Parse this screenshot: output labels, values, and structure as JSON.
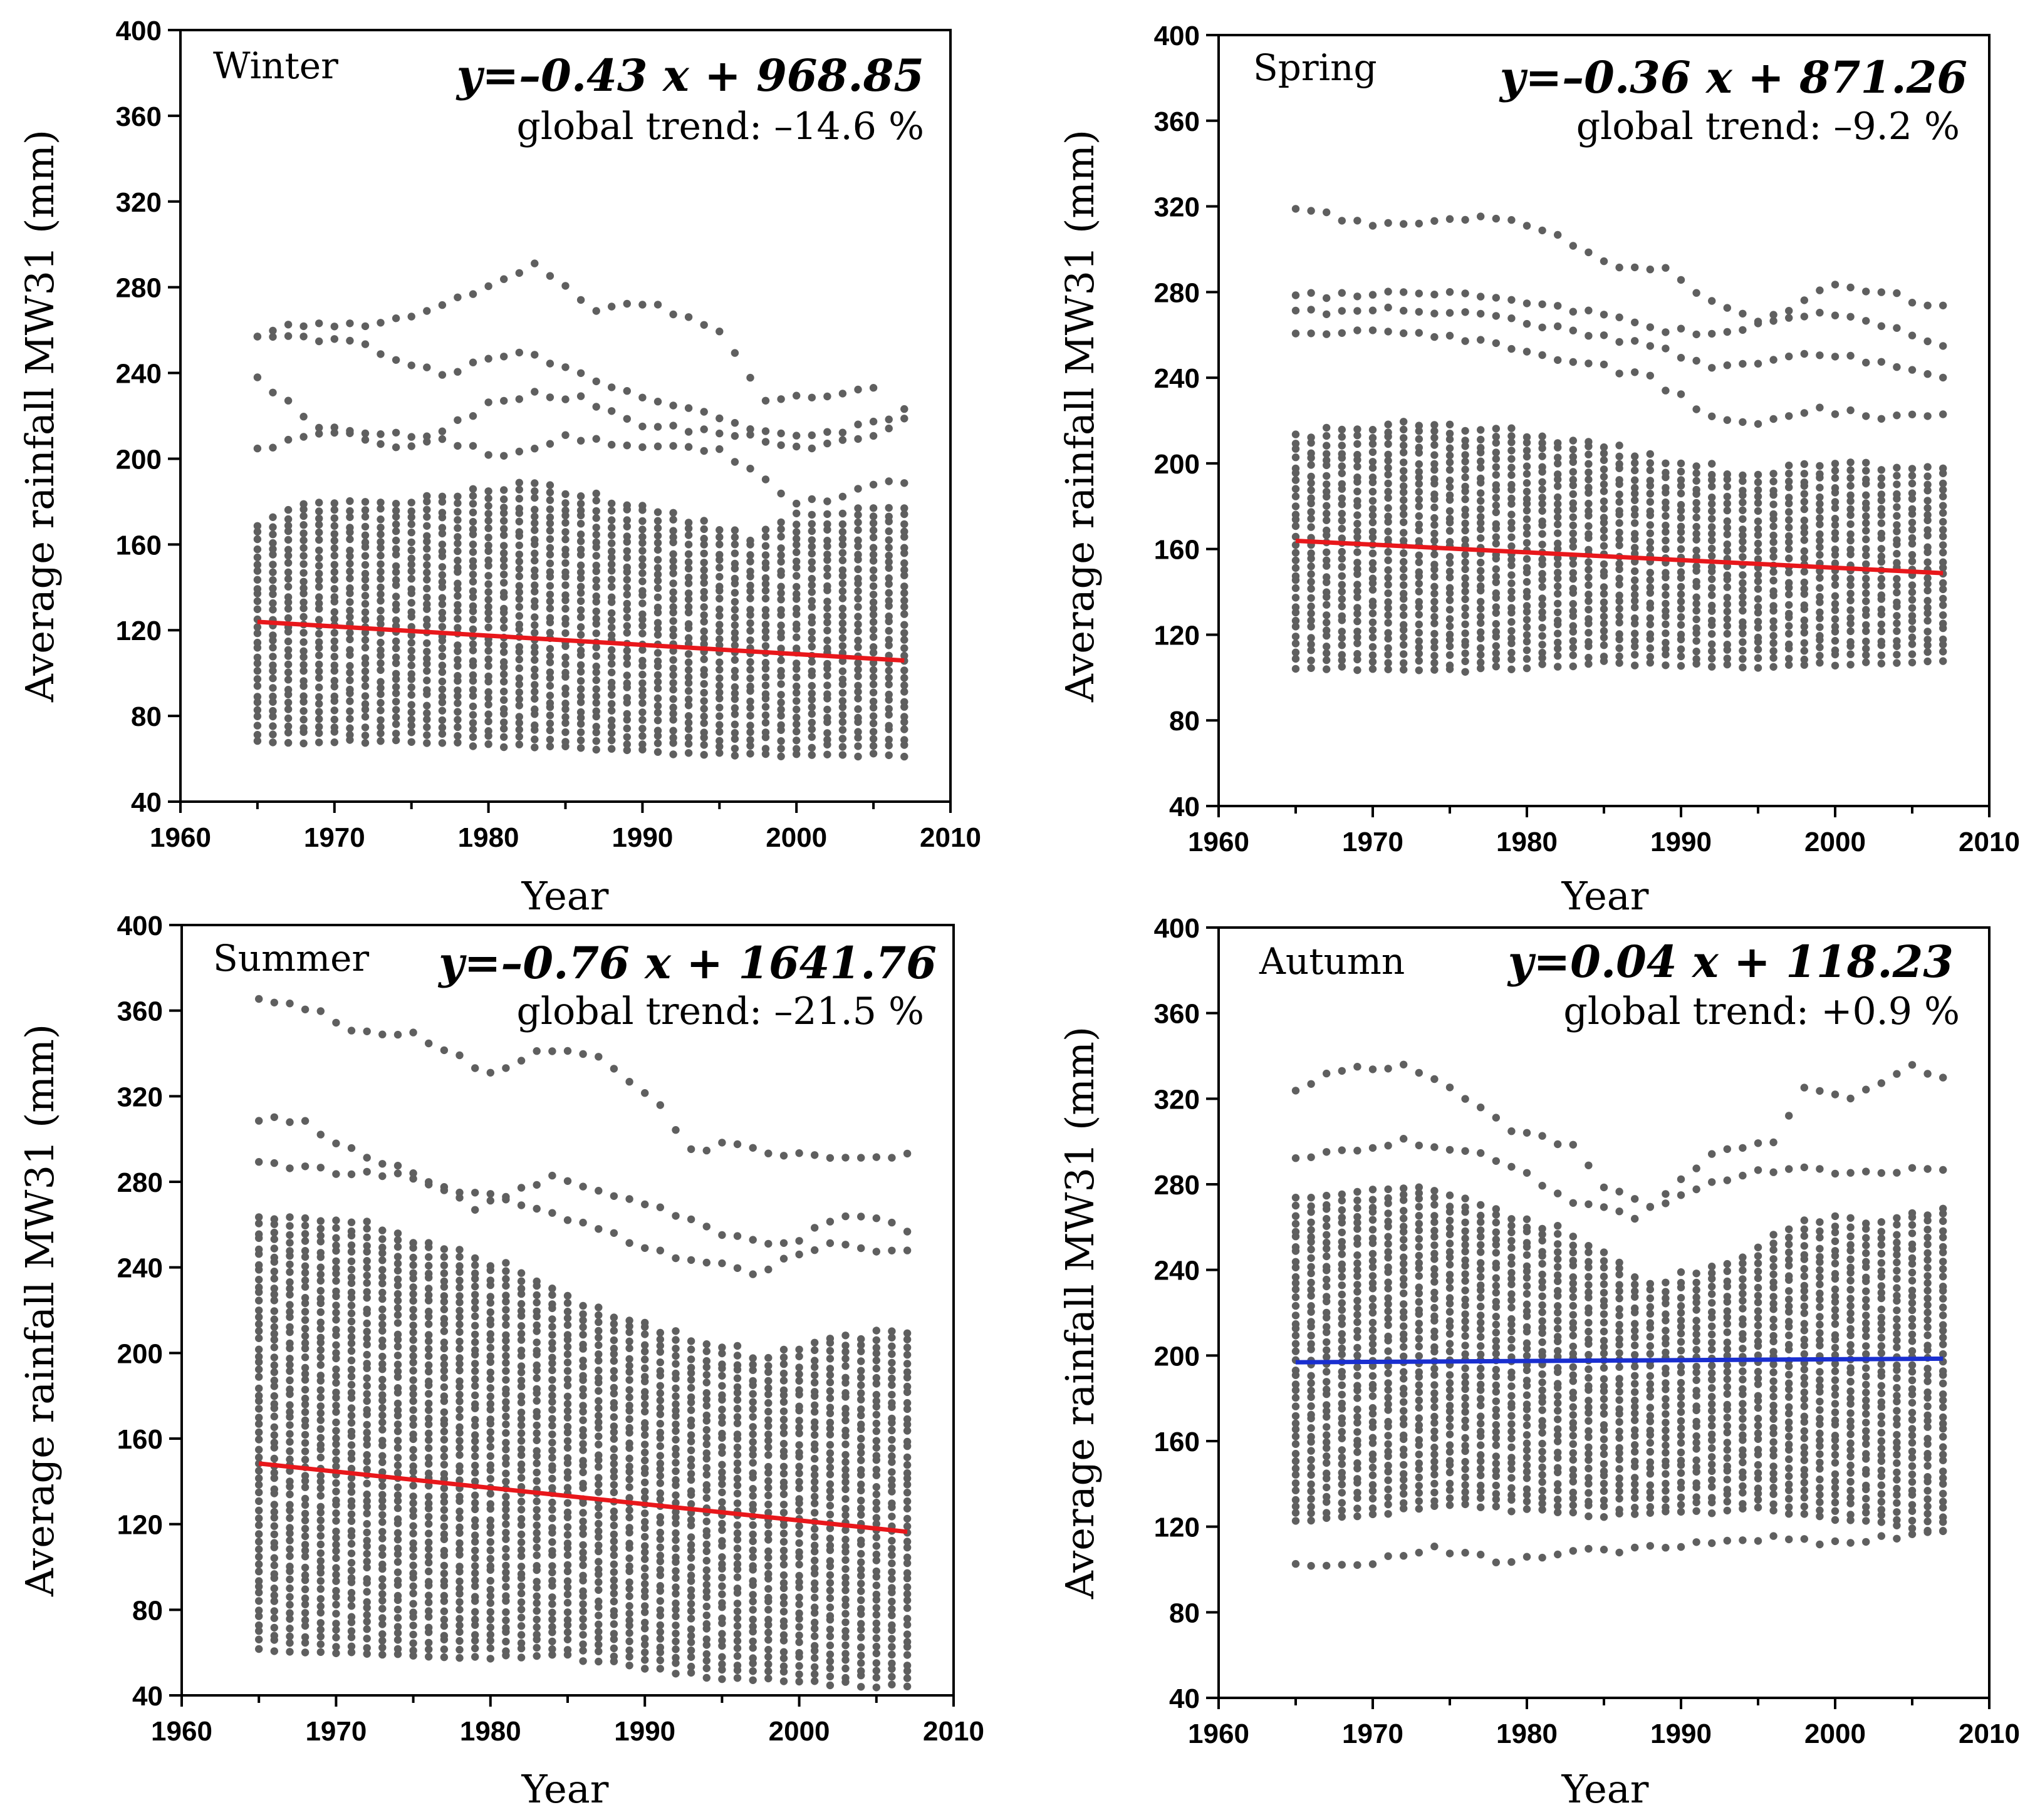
{
  "figure": {
    "colors": {
      "dots": "#5f5f5f",
      "axis": "#000000",
      "trend_red": "#e8171b",
      "trend_blue": "#1a2fd0"
    }
  },
  "chart_data": [
    {
      "type": "scatter",
      "panel": "winter",
      "season": "Winter",
      "equation": "y=–0.43 x + 968.85",
      "global_trend": "global trend: –14.6 %",
      "xlabel": "Year",
      "ylabel": "Average rainfall MW31 (mm)",
      "xlim": [
        1960,
        2010
      ],
      "ylim": [
        40,
        400
      ],
      "xticks": [
        "1960",
        "1970",
        "1980",
        "1990",
        "2000",
        "2010"
      ],
      "yticks": [
        "40",
        "80",
        "120",
        "160",
        "200",
        "240",
        "280",
        "320",
        "360",
        "400"
      ],
      "trend": {
        "slope": -0.43,
        "intercept": 968.85,
        "x_start": 1965,
        "x_end": 2007,
        "color": "#e8171b"
      },
      "years": [
        1965,
        2007
      ],
      "band_low": [
        [
          1965,
          68
        ],
        [
          1975,
          68
        ],
        [
          1985,
          65
        ],
        [
          1995,
          62
        ],
        [
          2007,
          62
        ]
      ],
      "band_high": [
        [
          1965,
          172
        ],
        [
          1968,
          180
        ],
        [
          1975,
          182
        ],
        [
          1983,
          190
        ],
        [
          1990,
          180
        ],
        [
          1997,
          165
        ],
        [
          2000,
          175
        ],
        [
          2007,
          180
        ]
      ],
      "outlier_tracks": [
        [
          [
            1965,
            205
          ],
          [
            1968,
            210
          ],
          [
            1973,
            212
          ],
          [
            1977,
            210
          ],
          [
            1981,
            200
          ],
          [
            1985,
            210
          ],
          [
            1990,
            205
          ],
          [
            1995,
            205
          ],
          [
            1997,
            195
          ],
          [
            2000,
            178
          ],
          [
            2004,
            185
          ],
          [
            2007,
            190
          ]
        ],
        [
          [
            1965,
            237
          ],
          [
            1969,
            215
          ],
          [
            1975,
            205
          ],
          [
            1980,
            225
          ],
          [
            1983,
            230
          ],
          [
            1986,
            228
          ],
          [
            1990,
            215
          ],
          [
            1995,
            213
          ],
          [
            2000,
            205
          ],
          [
            2004,
            208
          ],
          [
            2007,
            218
          ]
        ],
        [
          [
            1965,
            258
          ],
          [
            1971,
            255
          ],
          [
            1977,
            240
          ],
          [
            1982,
            250
          ],
          [
            1986,
            240
          ],
          [
            1990,
            228
          ],
          [
            1994,
            222
          ],
          [
            1998,
            212
          ],
          [
            2003,
            212
          ],
          [
            2007,
            222
          ]
        ],
        [
          [
            1965,
            258
          ],
          [
            1967,
            262
          ],
          [
            1973,
            262
          ],
          [
            1977,
            272
          ],
          [
            1983,
            290
          ],
          [
            1987,
            270
          ],
          [
            1991,
            272
          ],
          [
            1995,
            258
          ],
          [
            1998,
            228
          ],
          [
            2002,
            228
          ],
          [
            2005,
            233
          ]
        ]
      ]
    },
    {
      "type": "scatter",
      "panel": "spring",
      "season": "Spring",
      "equation": "y=–0.36 x + 871.26",
      "global_trend": "global trend: –9.2 %",
      "xlabel": "Year",
      "ylabel": "Average rainfall MW31 (mm)",
      "xlim": [
        1960,
        2010
      ],
      "ylim": [
        40,
        400
      ],
      "xticks": [
        "1960",
        "1970",
        "1980",
        "1990",
        "2000",
        "2010"
      ],
      "yticks": [
        "40",
        "80",
        "120",
        "160",
        "200",
        "240",
        "280",
        "320",
        "360",
        "400"
      ],
      "trend": {
        "slope": -0.36,
        "intercept": 871.26,
        "x_start": 1965,
        "x_end": 2007,
        "color": "#e8171b"
      },
      "years": [
        1965,
        2007
      ],
      "band_low": [
        [
          1965,
          105
        ],
        [
          1975,
          103
        ],
        [
          1985,
          107
        ],
        [
          1995,
          105
        ],
        [
          2007,
          108
        ]
      ],
      "band_high": [
        [
          1965,
          215
        ],
        [
          1971,
          220
        ],
        [
          1978,
          218
        ],
        [
          1985,
          210
        ],
        [
          1990,
          200
        ],
        [
          1995,
          198
        ],
        [
          2000,
          202
        ],
        [
          2007,
          198
        ]
      ],
      "outlier_tracks": [
        [
          [
            1965,
            260
          ],
          [
            1970,
            262
          ],
          [
            1977,
            258
          ],
          [
            1983,
            248
          ],
          [
            1988,
            240
          ],
          [
            1992,
            222
          ],
          [
            1995,
            218
          ],
          [
            1999,
            225
          ],
          [
            2003,
            222
          ],
          [
            2007,
            222
          ]
        ],
        [
          [
            1965,
            270
          ],
          [
            1970,
            272
          ],
          [
            1977,
            270
          ],
          [
            1983,
            262
          ],
          [
            1988,
            255
          ],
          [
            1992,
            245
          ],
          [
            1997,
            250
          ],
          [
            2001,
            250
          ],
          [
            2007,
            240
          ]
        ],
        [
          [
            1965,
            278
          ],
          [
            1971,
            280
          ],
          [
            1978,
            278
          ],
          [
            1984,
            270
          ],
          [
            1989,
            262
          ],
          [
            1993,
            260
          ],
          [
            1998,
            270
          ],
          [
            2002,
            268
          ],
          [
            2007,
            255
          ]
        ],
        [
          [
            1965,
            320
          ],
          [
            1969,
            312
          ],
          [
            1974,
            313
          ],
          [
            1978,
            315
          ],
          [
            1983,
            303
          ],
          [
            1986,
            290
          ],
          [
            1989,
            292
          ],
          [
            1991,
            280
          ],
          [
            1995,
            265
          ],
          [
            2000,
            283
          ],
          [
            2004,
            278
          ],
          [
            2007,
            273
          ]
        ]
      ]
    },
    {
      "type": "scatter",
      "panel": "summer",
      "season": "Summer",
      "equation": "y=–0.76 x + 1641.76",
      "global_trend": "global trend: –21.5 %",
      "xlabel": "Year",
      "ylabel": "Average rainfall MW31 (mm)",
      "xlim": [
        1960,
        2010
      ],
      "ylim": [
        40,
        400
      ],
      "xticks": [
        "1960",
        "1970",
        "1980",
        "1990",
        "2000",
        "2010"
      ],
      "yticks": [
        "40",
        "80",
        "120",
        "160",
        "200",
        "240",
        "280",
        "320",
        "360",
        "400"
      ],
      "trend": {
        "slope": -0.76,
        "intercept": 1641.76,
        "x_start": 1965,
        "x_end": 2007,
        "color": "#e8171b"
      },
      "years": [
        1965,
        2007
      ],
      "band_low": [
        [
          1965,
          62
        ],
        [
          1975,
          58
        ],
        [
          1985,
          58
        ],
        [
          1995,
          48
        ],
        [
          2007,
          44
        ]
      ],
      "band_high": [
        [
          1965,
          265
        ],
        [
          1972,
          262
        ],
        [
          1980,
          245
        ],
        [
          1986,
          225
        ],
        [
          1992,
          210
        ],
        [
          1998,
          200
        ],
        [
          2003,
          210
        ],
        [
          2007,
          212
        ]
      ],
      "outlier_tracks": [
        [
          [
            1965,
            288
          ],
          [
            1970,
            285
          ],
          [
            1975,
            282
          ],
          [
            1979,
            268
          ],
          [
            1984,
            282
          ],
          [
            1990,
            270
          ],
          [
            1994,
            258
          ],
          [
            1999,
            250
          ],
          [
            2003,
            265
          ],
          [
            2007,
            258
          ]
        ],
        [
          [
            1965,
            310
          ],
          [
            1968,
            308
          ],
          [
            1970,
            298
          ],
          [
            1977,
            278
          ],
          [
            1983,
            268
          ],
          [
            1987,
            258
          ],
          [
            1992,
            245
          ],
          [
            1997,
            238
          ],
          [
            2002,
            250
          ],
          [
            2007,
            248
          ]
        ],
        [
          [
            1965,
            365
          ],
          [
            1969,
            360
          ],
          [
            1971,
            350
          ],
          [
            1975,
            350
          ],
          [
            1980,
            330
          ],
          [
            1983,
            342
          ],
          [
            1987,
            338
          ],
          [
            1991,
            315
          ],
          [
            1993,
            295
          ],
          [
            1996,
            298
          ],
          [
            1999,
            292
          ],
          [
            2003,
            292
          ],
          [
            2007,
            292
          ]
        ]
      ]
    },
    {
      "type": "scatter",
      "panel": "autumn",
      "season": "Autumn",
      "equation": "y=0.04 x + 118.23",
      "global_trend": "global trend: +0.9 %",
      "xlabel": "Year",
      "ylabel": "Average rainfall MW31 (mm)",
      "xlim": [
        1960,
        2010
      ],
      "ylim": [
        40,
        400
      ],
      "xticks": [
        "1960",
        "1970",
        "1980",
        "1990",
        "2000",
        "2010"
      ],
      "yticks": [
        "40",
        "80",
        "120",
        "160",
        "200",
        "240",
        "280",
        "320",
        "360",
        "400"
      ],
      "trend": {
        "slope": 0.04,
        "intercept": 118.23,
        "x_start": 1965,
        "x_end": 2007,
        "color": "#1a2fd0"
      },
      "years": [
        1965,
        2007
      ],
      "band_low": [
        [
          1965,
          122
        ],
        [
          1975,
          130
        ],
        [
          1985,
          125
        ],
        [
          1995,
          128
        ],
        [
          2007,
          118
        ]
      ],
      "band_high": [
        [
          1965,
          275
        ],
        [
          1972,
          282
        ],
        [
          1978,
          270
        ],
        [
          1984,
          255
        ],
        [
          1988,
          235
        ],
        [
          1993,
          245
        ],
        [
          1998,
          265
        ],
        [
          2003,
          265
        ],
        [
          2007,
          270
        ]
      ],
      "outlier_tracks": [
        [
          [
            1965,
            103
          ],
          [
            1969,
            102
          ],
          [
            1974,
            110
          ],
          [
            1978,
            104
          ],
          [
            1983,
            108
          ],
          [
            1988,
            110
          ],
          [
            1993,
            113
          ],
          [
            1996,
            115
          ],
          [
            2000,
            112
          ],
          [
            2004,
            115
          ],
          [
            2007,
            118
          ]
        ],
        [
          [
            1965,
            293
          ],
          [
            1972,
            300
          ],
          [
            1978,
            292
          ],
          [
            1983,
            272
          ],
          [
            1987,
            265
          ],
          [
            1992,
            282
          ],
          [
            1997,
            288
          ],
          [
            2002,
            285
          ],
          [
            2007,
            288
          ]
        ],
        [
          [
            1965,
            325
          ],
          [
            1968,
            333
          ],
          [
            1972,
            336
          ],
          [
            1976,
            320
          ],
          [
            1979,
            305
          ],
          [
            1983,
            298
          ],
          [
            1985,
            280
          ],
          [
            1988,
            270
          ],
          [
            1992,
            295
          ],
          [
            1996,
            300
          ],
          [
            1998,
            325
          ],
          [
            2001,
            320
          ],
          [
            2005,
            336
          ],
          [
            2007,
            330
          ]
        ]
      ]
    }
  ]
}
